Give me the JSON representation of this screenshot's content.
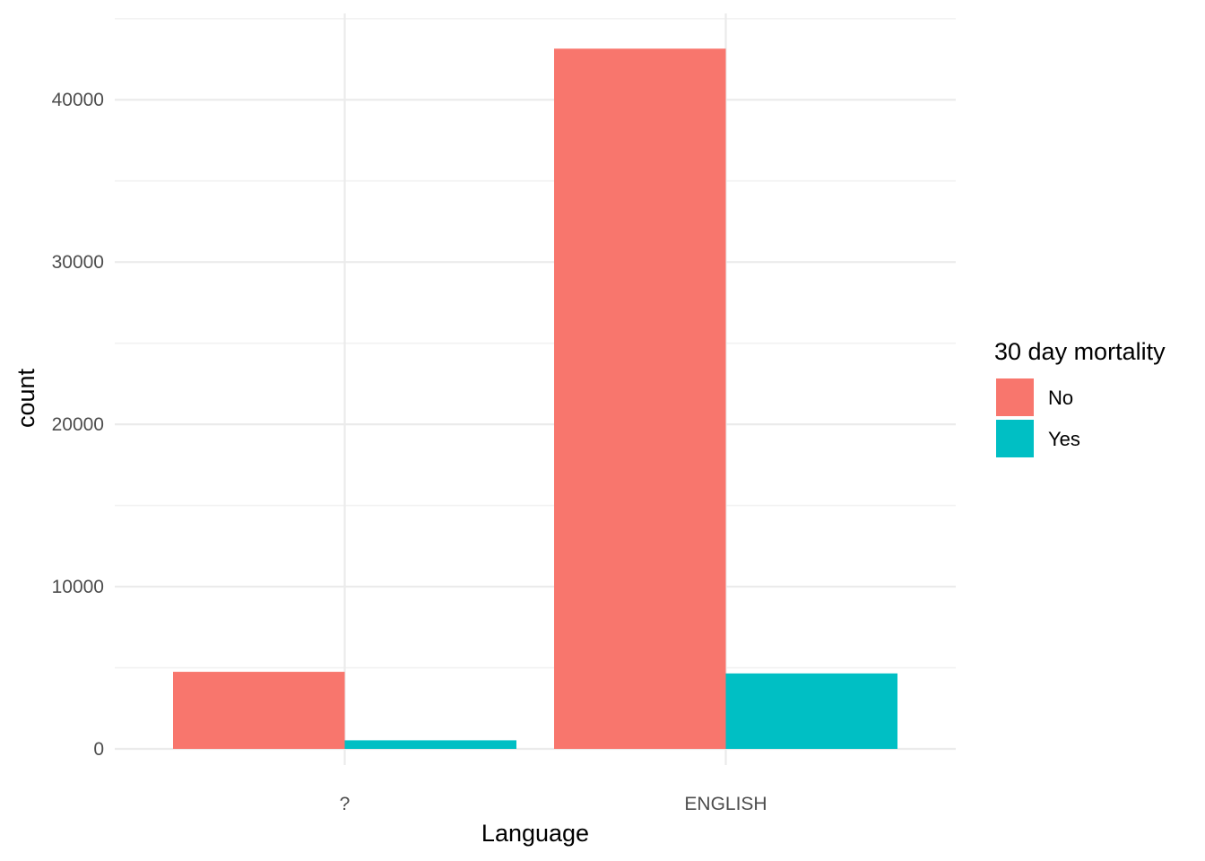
{
  "chart_data": {
    "type": "bar",
    "categories": [
      "?",
      "ENGLISH"
    ],
    "series": [
      {
        "name": "No",
        "values": [
          4750,
          43150
        ],
        "color": "#F8766D"
      },
      {
        "name": "Yes",
        "values": [
          530,
          4650
        ],
        "color": "#00BFC4"
      }
    ],
    "title": "",
    "xlabel": "Language",
    "ylabel": "count",
    "ylim": [
      0,
      45000
    ],
    "yticks": [
      0,
      10000,
      20000,
      30000,
      40000
    ],
    "ytick_labels": [
      "0",
      "10000",
      "20000",
      "30000",
      "40000"
    ],
    "grid": true,
    "legend": {
      "title": "30 day mortality",
      "position": "right"
    }
  }
}
